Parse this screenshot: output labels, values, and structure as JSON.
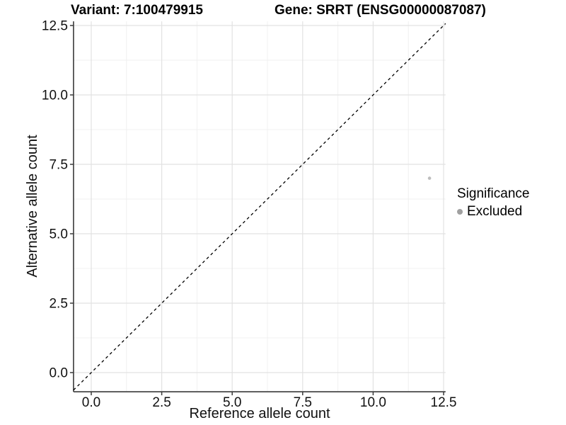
{
  "title": {
    "left": "Variant: 7:100479915",
    "right": "Gene: SRRT (ENSG00000087087)"
  },
  "chart_data": {
    "type": "scatter",
    "title": "Variant: 7:100479915   Gene: SRRT (ENSG00000087087)",
    "xlabel": "Reference allele count",
    "ylabel": "Alternative allele count",
    "xlim": [
      -0.63,
      12.57
    ],
    "ylim": [
      -0.69,
      12.65
    ],
    "x_ticks": {
      "values": [
        0,
        2.5,
        5,
        7.5,
        10,
        12.5
      ],
      "labels": [
        "0.0",
        "2.5",
        "5.0",
        "7.5",
        "10.0",
        "12.5"
      ]
    },
    "y_ticks": {
      "values": [
        0,
        2.5,
        5,
        7.5,
        10,
        12.5
      ],
      "labels": [
        "0.0",
        "2.5",
        "5.0",
        "7.5",
        "10.0",
        "12.5"
      ]
    },
    "grid": "major and minor, on",
    "reference_line": {
      "type": "identity",
      "slope": 1,
      "intercept": 0,
      "style": "dashed",
      "color": "#000000"
    },
    "series": [
      {
        "name": "Excluded",
        "color": "#bdbdbd",
        "points": [
          {
            "x": 12,
            "y": 7
          }
        ]
      }
    ],
    "legend": {
      "title": "Significance",
      "position": "right",
      "items": [
        {
          "label": "Excluded",
          "color": "#a0a0a0"
        }
      ]
    }
  },
  "colors": {
    "background": "#ffffff",
    "grid_major": "#e2e2e2",
    "grid_minor": "#f0f0f0",
    "axis_line": "#3a3a3a",
    "tick_text": "#111111"
  }
}
